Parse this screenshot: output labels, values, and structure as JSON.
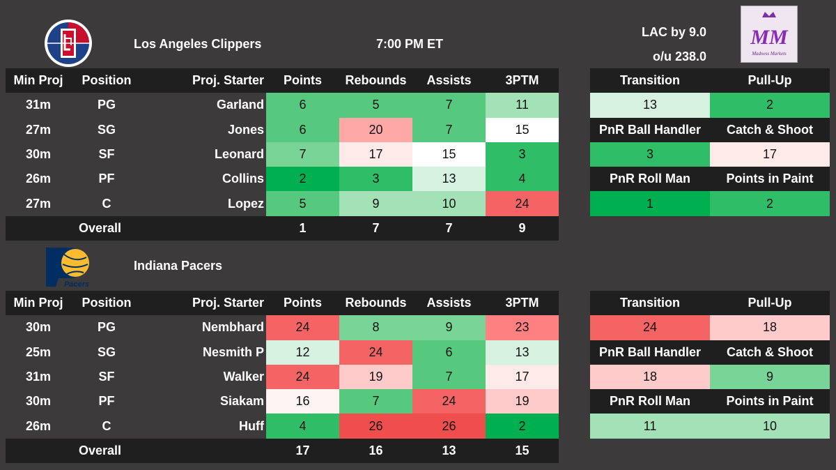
{
  "game": {
    "time": "7:00 PM ET",
    "spread": "LAC by 9.0",
    "total": "o/u 238.0"
  },
  "brand": {
    "logo_text": "MM",
    "logo_sub": "Madness Markets"
  },
  "headers": {
    "min": "Min Proj",
    "pos": "Position",
    "starter": "Proj. Starter",
    "pts": "Points",
    "reb": "Rebounds",
    "ast": "Assists",
    "tpm": "3PTM"
  },
  "side_labels": {
    "transition": "Transition",
    "pullup": "Pull-Up",
    "pnr_bh": "PnR Ball Handler",
    "catch": "Catch & Shoot",
    "pnr_roll": "PnR Roll Man",
    "paint": "Points in Paint"
  },
  "overall_label": "Overall",
  "clippers": {
    "name": "Los Angeles Clippers",
    "rows": [
      {
        "min": "31m",
        "pos": "PG",
        "name": "Garland",
        "pts": "6",
        "reb": "5",
        "ast": "7",
        "tpm": "11"
      },
      {
        "min": "27m",
        "pos": "SG",
        "name": "Jones",
        "pts": "6",
        "reb": "20",
        "ast": "7",
        "tpm": "15"
      },
      {
        "min": "30m",
        "pos": "SF",
        "name": "Leonard",
        "pts": "7",
        "reb": "17",
        "ast": "15",
        "tpm": "3"
      },
      {
        "min": "26m",
        "pos": "PF",
        "name": "Collins",
        "pts": "2",
        "reb": "3",
        "ast": "13",
        "tpm": "4"
      },
      {
        "min": "27m",
        "pos": "C",
        "name": "Lopez",
        "pts": "5",
        "reb": "9",
        "ast": "10",
        "tpm": "24"
      }
    ],
    "overall": {
      "pts": "1",
      "reb": "7",
      "ast": "7",
      "tpm": "9"
    },
    "side": {
      "transition": "13",
      "pullup": "2",
      "pnr_bh": "3",
      "catch": "17",
      "pnr_roll": "1",
      "paint": "2"
    }
  },
  "pacers": {
    "name": "Indiana Pacers",
    "logo_text": "Pacers",
    "rows": [
      {
        "min": "30m",
        "pos": "PG",
        "name": "Nembhard",
        "pts": "24",
        "reb": "8",
        "ast": "9",
        "tpm": "23"
      },
      {
        "min": "25m",
        "pos": "SG",
        "name": "Nesmith P",
        "pts": "12",
        "reb": "24",
        "ast": "6",
        "tpm": "13"
      },
      {
        "min": "31m",
        "pos": "SF",
        "name": "Walker",
        "pts": "24",
        "reb": "19",
        "ast": "7",
        "tpm": "17"
      },
      {
        "min": "30m",
        "pos": "PF",
        "name": "Siakam",
        "pts": "16",
        "reb": "7",
        "ast": "24",
        "tpm": "19"
      },
      {
        "min": "26m",
        "pos": "C",
        "name": "Huff",
        "pts": "4",
        "reb": "26",
        "ast": "26",
        "tpm": "2"
      }
    ],
    "overall": {
      "pts": "17",
      "reb": "16",
      "ast": "13",
      "tpm": "15"
    },
    "side": {
      "transition": "24",
      "pullup": "18",
      "pnr_bh": "18",
      "catch": "9",
      "pnr_roll": "11",
      "paint": "10"
    }
  }
}
